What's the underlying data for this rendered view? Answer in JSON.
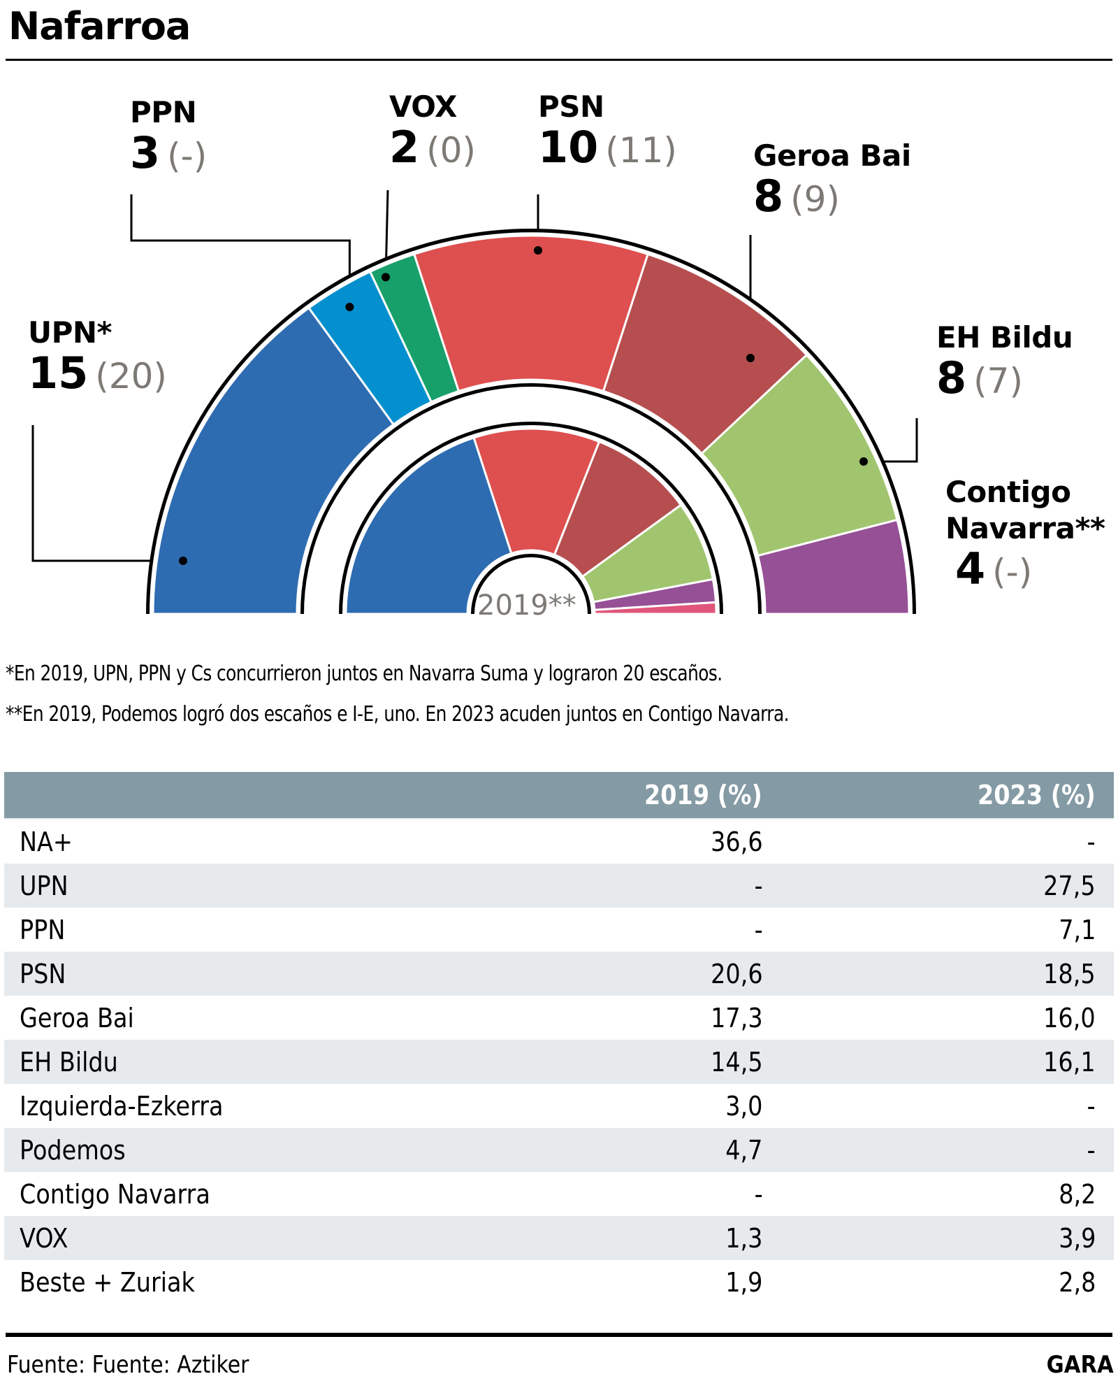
{
  "title": "Nafarroa",
  "chart_data": {
    "type": "parliament",
    "total_seats": 50,
    "rings": [
      {
        "name": "2023",
        "label": "",
        "series": [
          {
            "party": "UPN",
            "seats": 15,
            "color": "#2e6cb2"
          },
          {
            "party": "PPN",
            "seats": 3,
            "color": "#0490ce"
          },
          {
            "party": "VOX",
            "seats": 2,
            "color": "#17a06a"
          },
          {
            "party": "PSN",
            "seats": 10,
            "color": "#de4f4f"
          },
          {
            "party": "Geroa Bai",
            "seats": 8,
            "color": "#b64e4f"
          },
          {
            "party": "EH Bildu",
            "seats": 8,
            "color": "#a1c56f"
          },
          {
            "party": "Contigo Navarra",
            "seats": 4,
            "color": "#955096"
          }
        ]
      },
      {
        "name": "2019",
        "label": "2019**",
        "series": [
          {
            "party": "NA+",
            "seats": 20,
            "color": "#2e6cb2"
          },
          {
            "party": "PSN",
            "seats": 11,
            "color": "#de4f4f"
          },
          {
            "party": "Geroa Bai",
            "seats": 9,
            "color": "#b64e4f"
          },
          {
            "party": "EH Bildu",
            "seats": 7,
            "color": "#a1c56f"
          },
          {
            "party": "Podemos",
            "seats": 2,
            "color": "#955096"
          },
          {
            "party": "I-E",
            "seats": 1,
            "color": "#e0557a"
          }
        ]
      }
    ],
    "labels": [
      {
        "name": "UPN*",
        "seats": "15",
        "prev": "(20)"
      },
      {
        "name": "PPN",
        "seats": "3",
        "prev": "(-)"
      },
      {
        "name": "VOX",
        "seats": "2",
        "prev": "(0)"
      },
      {
        "name": "PSN",
        "seats": "10",
        "prev": "(11)"
      },
      {
        "name": "Geroa Bai",
        "seats": "8",
        "prev": "(9)"
      },
      {
        "name": "EH Bildu",
        "seats": "8",
        "prev": "(7)"
      },
      {
        "name": "Contigo Navarra**",
        "name_line1": "Contigo",
        "name_line2": "Navarra**",
        "seats": "4",
        "prev": "(-)"
      }
    ]
  },
  "footnotes": [
    "*En 2019, UPN, PPN y Cs concurrieron juntos en Navarra Suma y lograron 20 escaños.",
    "**En 2019, Podemos logró dos escaños e I-E, uno. En 2023 acuden juntos en Contigo Navarra."
  ],
  "table": {
    "headers": [
      "",
      "2019 (%)",
      "2023 (%)"
    ],
    "rows": [
      [
        "NA+",
        "36,6",
        "-"
      ],
      [
        "UPN",
        "-",
        "27,5"
      ],
      [
        "PPN",
        "-",
        "7,1"
      ],
      [
        "PSN",
        "20,6",
        "18,5"
      ],
      [
        "Geroa Bai",
        "17,3",
        "16,0"
      ],
      [
        "EH Bildu",
        "14,5",
        "16,1"
      ],
      [
        "Izquierda-Ezkerra",
        "3,0",
        "-"
      ],
      [
        "Podemos",
        "4,7",
        "-"
      ],
      [
        "Contigo Navarra",
        "-",
        "8,2"
      ],
      [
        "VOX",
        "1,3",
        "3,9"
      ],
      [
        "Beste + Zuriak",
        "1,9",
        "2,8"
      ]
    ]
  },
  "source": "Fuente: Fuente: Aztiker",
  "brand": "GARA"
}
